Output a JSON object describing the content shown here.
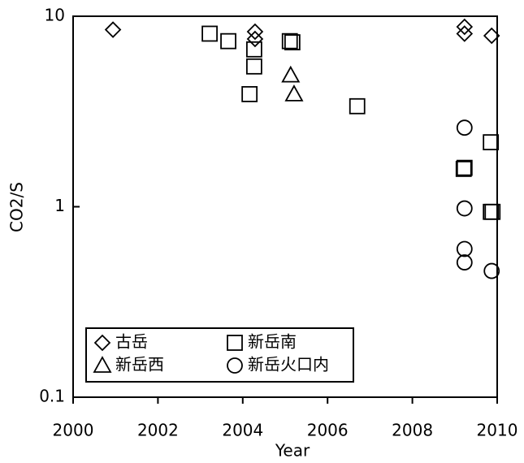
{
  "chart_data": {
    "type": "scatter",
    "xlabel": "Year",
    "ylabel": "CO2/S",
    "xlim": [
      2000,
      2010
    ],
    "xticks": [
      2000,
      2002,
      2004,
      2006,
      2008,
      2010
    ],
    "ylim": [
      0.1,
      10
    ],
    "yticks": [
      0.1,
      1,
      10
    ],
    "log_y": true,
    "legend": "lower left",
    "series": [
      {
        "name": "古岳",
        "color": "#000000",
        "marker": "diamond",
        "x": [
          2000.94,
          2004.29,
          2004.29,
          2009.23,
          2009.23,
          2009.87
        ],
        "values": [
          8.5,
          8.3,
          7.6,
          8.8,
          8.1,
          7.9
        ]
      },
      {
        "name": "新岳南",
        "color": "#000000",
        "marker": "square",
        "x": [
          2003.22,
          2003.66,
          2004.27,
          2004.27,
          2004.16,
          2005.11,
          2005.17,
          2006.7,
          2009.21,
          2009.23,
          2009.85,
          2009.85,
          2009.89
        ],
        "values": [
          8.1,
          7.4,
          6.7,
          5.45,
          3.9,
          7.4,
          7.3,
          3.37,
          1.58,
          1.6,
          2.18,
          0.94,
          0.94
        ]
      },
      {
        "name": "新岳西",
        "color": "#000000",
        "marker": "triangle",
        "x": [
          2005.13,
          2005.21
        ],
        "values": [
          4.9,
          3.9
        ]
      },
      {
        "name": "新岳火口内",
        "color": "#000000",
        "marker": "circle",
        "x": [
          2009.23,
          2009.23,
          2009.23,
          2009.23,
          2009.87
        ],
        "values": [
          2.6,
          0.98,
          0.6,
          0.51,
          0.46
        ]
      }
    ]
  }
}
